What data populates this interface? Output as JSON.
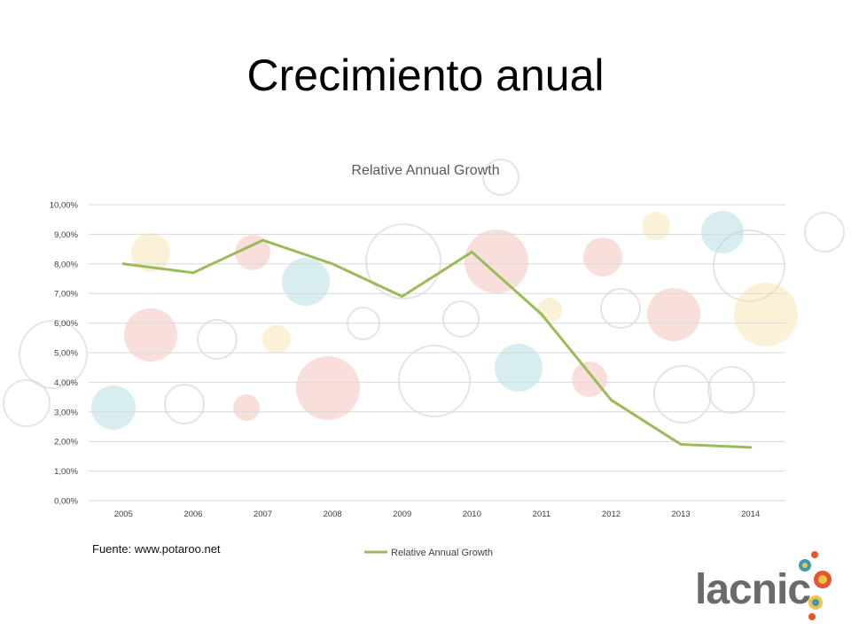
{
  "slide": {
    "title": "Crecimiento anual",
    "source": "Fuente: www.potaroo.net",
    "logo_text": "lacnic"
  },
  "colors": {
    "line": "#9bbb59",
    "grid": "#d9d9d9",
    "tick_text": "#404040",
    "title_text": "#595959",
    "bubble_palette": [
      "#f2b8b0",
      "#f5e0a3",
      "#a8d8dc",
      "#c9c9c9",
      "#f0a8a0"
    ]
  },
  "chart_data": {
    "type": "line",
    "title": "Relative Annual Growth",
    "categories": [
      "2005",
      "2006",
      "2007",
      "2008",
      "2009",
      "2010",
      "2011",
      "2012",
      "2013",
      "2014"
    ],
    "series": [
      {
        "name": "Relative Annual Growth",
        "values": [
          8.0,
          7.7,
          8.8,
          8.0,
          6.9,
          8.4,
          6.3,
          3.4,
          1.9,
          1.8
        ]
      }
    ],
    "y_tick_labels": [
      "0,00%",
      "1,00%",
      "2,00%",
      "3,00%",
      "4,00%",
      "5,00%",
      "6,00%",
      "7,00%",
      "8,00%",
      "9,00%",
      "10,00%"
    ],
    "ylim": [
      0,
      10
    ],
    "grid": true,
    "legend": "bottom"
  }
}
